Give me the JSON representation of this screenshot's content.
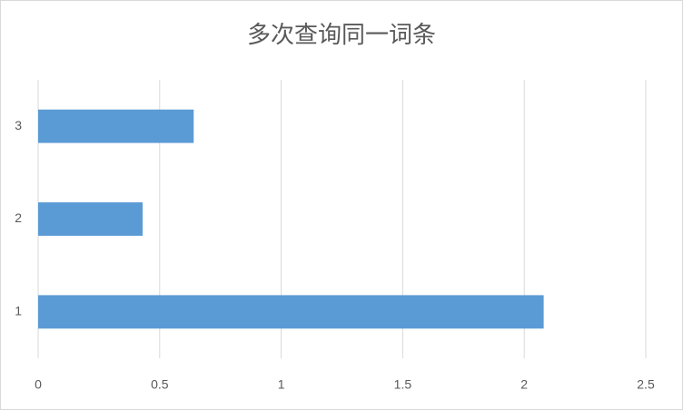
{
  "chart_data": {
    "type": "hbar",
    "title": "多次查询同一词条",
    "categories": [
      "1",
      "2",
      "3"
    ],
    "values": [
      2.08,
      0.43,
      0.64
    ],
    "color": "#5b9bd5",
    "xlim": [
      0,
      2.5
    ],
    "xticks": [
      0,
      0.5,
      1,
      1.5,
      2,
      2.5
    ],
    "grid": true
  }
}
